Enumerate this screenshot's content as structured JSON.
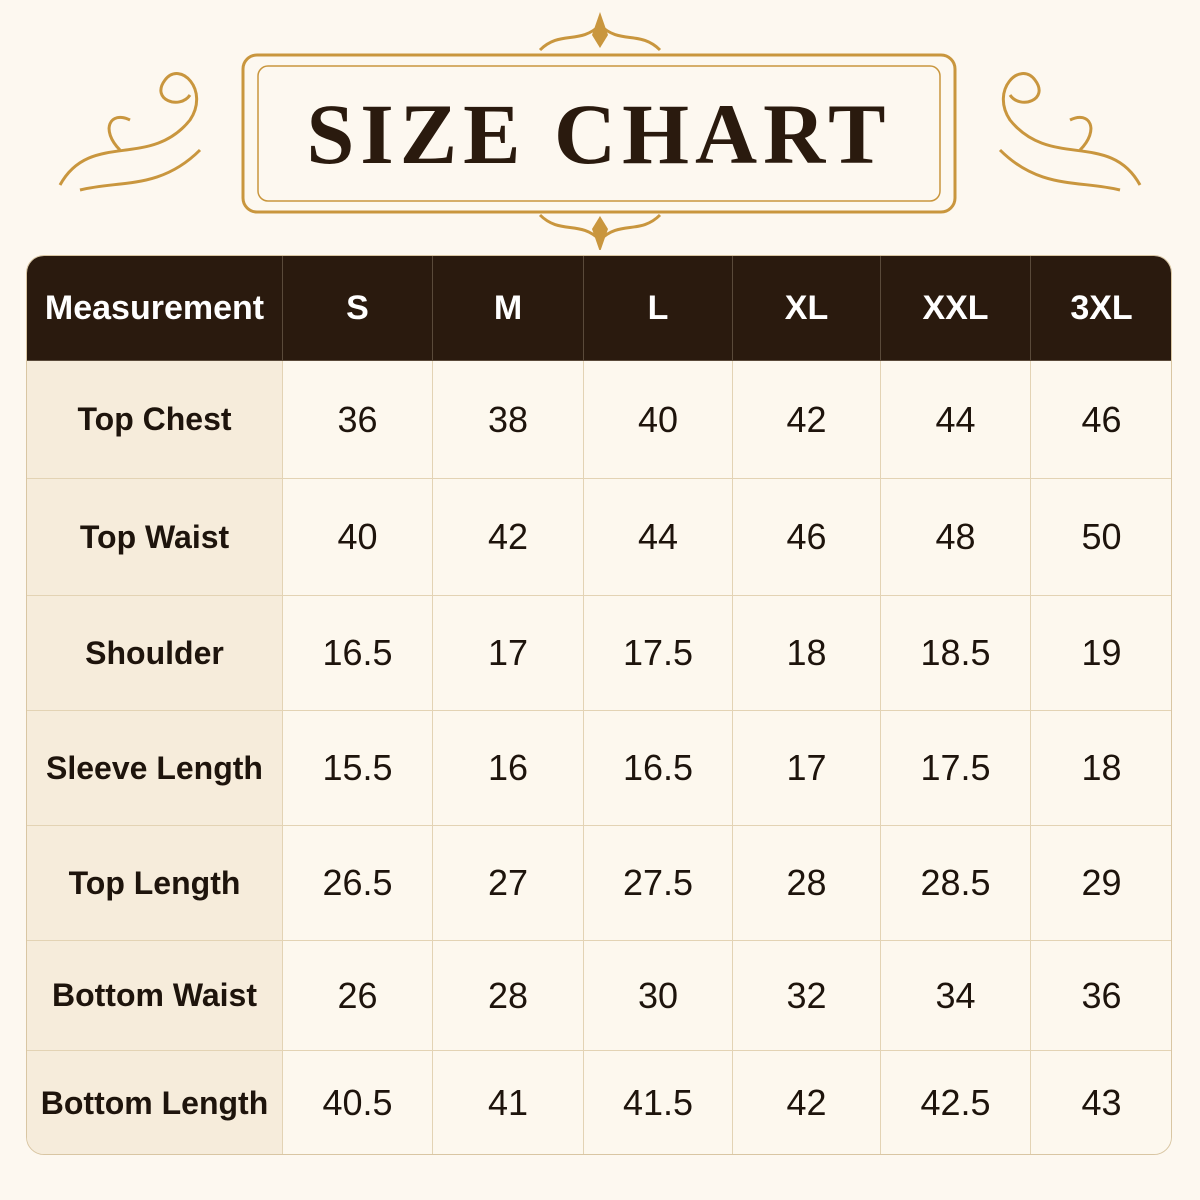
{
  "header": {
    "title": "SIZE CHART"
  },
  "table": {
    "columns": [
      "Measurement",
      "S",
      "M",
      "L",
      "XL",
      "XXL",
      "3XL"
    ],
    "rows": [
      [
        "Top Chest",
        36,
        38,
        40,
        42,
        44,
        46
      ],
      [
        "Top Waist",
        40,
        42,
        44,
        46,
        48,
        50
      ],
      [
        "Shoulder",
        16.5,
        17,
        17.5,
        18,
        18.5,
        19
      ],
      [
        "Sleeve Length",
        15.5,
        16,
        16.5,
        17,
        17.5,
        18
      ],
      [
        "Top Length",
        26.5,
        27,
        27.5,
        28,
        28.5,
        29
      ],
      [
        "Bottom Waist",
        26,
        28,
        30,
        32,
        34,
        36
      ],
      [
        "Bottom Length",
        40.5,
        41,
        41.5,
        42,
        42.5,
        43
      ]
    ]
  }
}
